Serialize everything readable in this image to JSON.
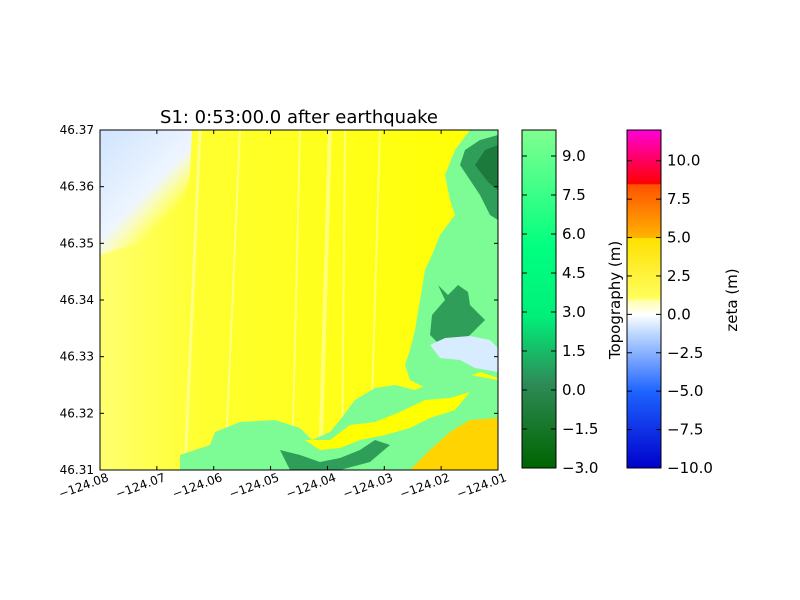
{
  "chart_data": {
    "type": "heatmap",
    "title": "S1: 0:53:00.0 after earthquake",
    "xlabel": "",
    "ylabel": "",
    "xlim": [
      -124.08,
      -124.01
    ],
    "ylim": [
      46.31,
      46.37
    ],
    "x_ticks": [
      "−124.08",
      "−124.07",
      "−124.06",
      "−124.05",
      "−124.04",
      "−124.03",
      "−124.02",
      "−124.01"
    ],
    "y_ticks": [
      "46.31",
      "46.32",
      "46.33",
      "46.34",
      "46.35",
      "46.36",
      "46.37"
    ],
    "colorbars": [
      {
        "name": "topography",
        "label": "Topography (m)",
        "range": [
          -3.0,
          10.0
        ],
        "ticks": [
          "−3.0",
          "−1.5",
          "0.0",
          "1.5",
          "3.0",
          "4.5",
          "6.0",
          "7.5",
          "9.0"
        ],
        "colors": [
          "#006400",
          "#2e8b57",
          "#00ff7f",
          "#7cfc9a"
        ]
      },
      {
        "name": "zeta",
        "label": "zeta (m)",
        "range": [
          -10.0,
          12.0
        ],
        "ticks": [
          "−10.0",
          "−7.5",
          "−5.0",
          "−2.5",
          "0.0",
          "2.5",
          "5.0",
          "7.5",
          "10.0"
        ],
        "colors": [
          "#0000cc",
          "#1e64ff",
          "#8cc8ff",
          "#ffffff",
          "#ffff00",
          "#ffb400",
          "#ff5a00",
          "#ff0000",
          "#ff00c8"
        ]
      }
    ]
  }
}
